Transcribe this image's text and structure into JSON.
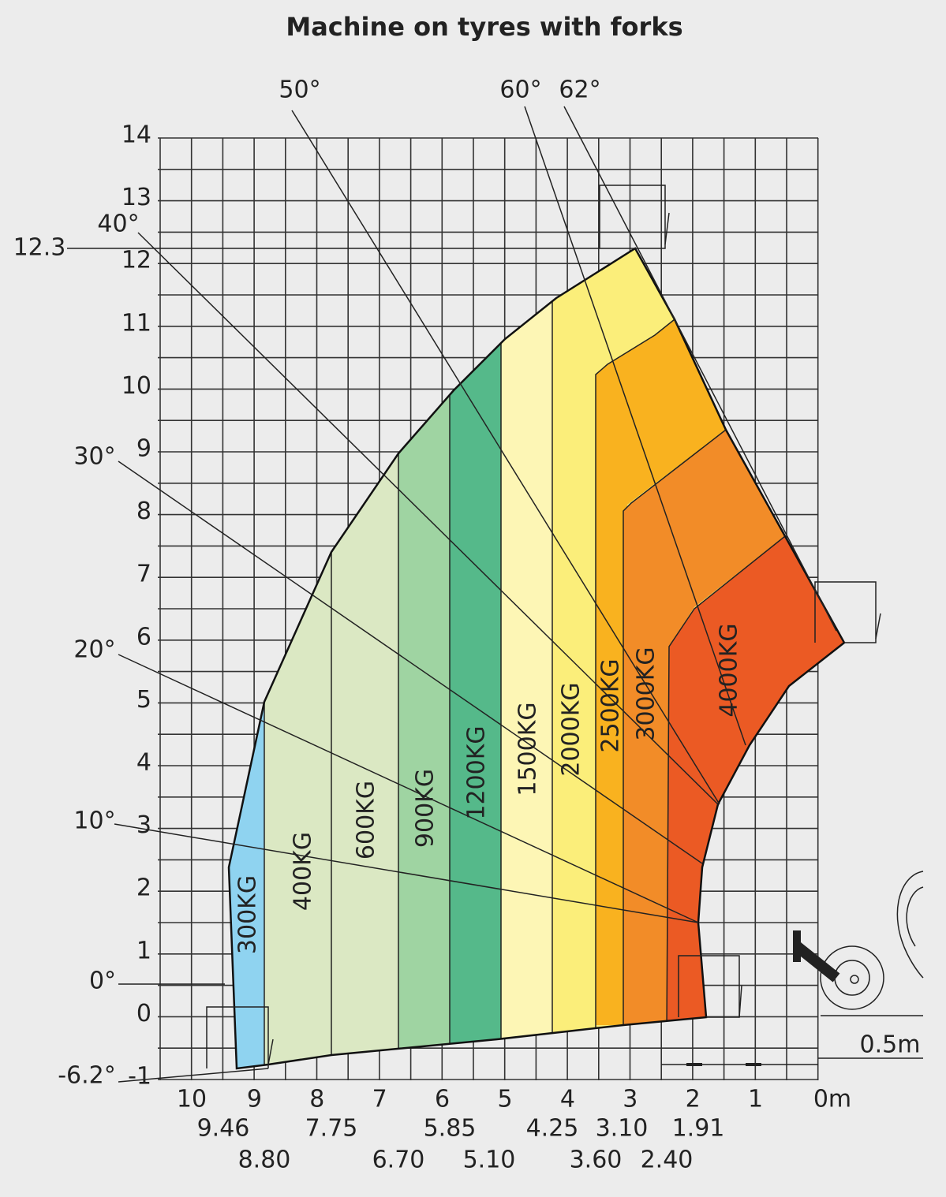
{
  "header": {
    "title": "Machine on tyres with forks"
  },
  "height_label": "12.3",
  "y_axis": {
    "labels": [
      "14",
      "13",
      "12",
      "11",
      "10",
      "9",
      "8",
      "7",
      "6",
      "5",
      "4",
      "3",
      "2",
      "1",
      "0",
      "-1"
    ]
  },
  "x_axis": {
    "labels": [
      "10",
      "9",
      "8",
      "7",
      "6",
      "5",
      "4",
      "3",
      "2",
      "1",
      "0m"
    ]
  },
  "reach_labels": [
    "9.46",
    "8.80",
    "7.75",
    "6.70",
    "5.85",
    "5.10",
    "4.25",
    "3.60",
    "3.10",
    "2.40",
    "1.91"
  ],
  "angles": [
    "62°",
    "60°",
    "50°",
    "40°",
    "30°",
    "20°",
    "10°",
    "0°",
    "-6.2°"
  ],
  "zones": [
    "300KG",
    "400KG",
    "600KG",
    "900KG",
    "1200KG",
    "1500KG",
    "2000KG",
    "2500KG",
    "3000KG",
    "4000KG"
  ],
  "scale_label": "0.5m"
}
